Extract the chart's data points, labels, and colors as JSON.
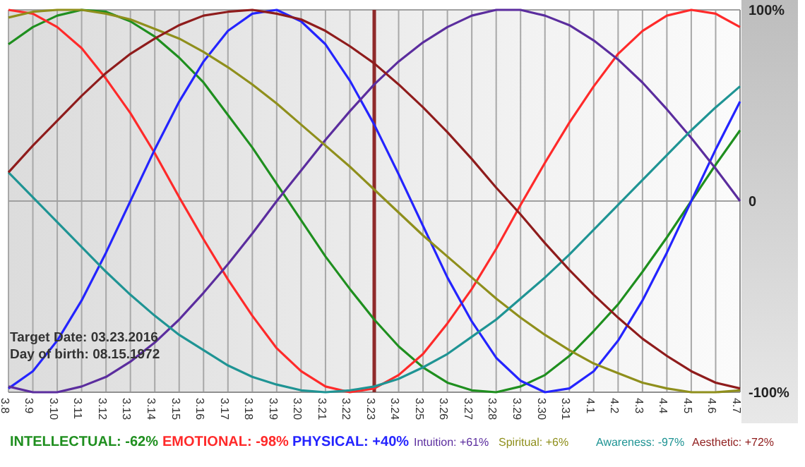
{
  "chart_data": {
    "type": "line",
    "categories": [
      "3.8",
      "3.9",
      "3.10",
      "3.11",
      "3.12",
      "3.13",
      "3.14",
      "3.15",
      "3.16",
      "3.17",
      "3.18",
      "3.19",
      "3.20",
      "3.21",
      "3.22",
      "3.23",
      "3.24",
      "3.25",
      "3.26",
      "3.27",
      "3.28",
      "3.29",
      "3.30",
      "3.31",
      "4.1",
      "4.2",
      "4.3",
      "4.4",
      "4.5",
      "4.6",
      "4.7"
    ],
    "series": [
      {
        "name": "INTELLECTUAL: -62%",
        "color": "#1f8f1f",
        "values": [
          82,
          91,
          97,
          100,
          99,
          94,
          86,
          75,
          62,
          45,
          28,
          9,
          -10,
          -29,
          -46,
          -62,
          -76,
          -87,
          -95,
          -99,
          -100,
          -97,
          -91,
          -81,
          -68,
          -54,
          -37,
          -19,
          0,
          19,
          37
        ]
      },
      {
        "name": "EMOTIONAL: -98%",
        "color": "#ff2a2a",
        "values": [
          100,
          98,
          91,
          80,
          64,
          46,
          25,
          2,
          -20,
          -41,
          -60,
          -77,
          -89,
          -97,
          -100,
          -98,
          -91,
          -80,
          -64,
          -46,
          -25,
          -2,
          20,
          41,
          60,
          77,
          89,
          97,
          100,
          98,
          91
        ]
      },
      {
        "name": "PHYSICAL: +40%",
        "color": "#2424ff",
        "values": [
          -98,
          -89,
          -73,
          -52,
          -27,
          0,
          27,
          52,
          73,
          89,
          98,
          100,
          94,
          82,
          63,
          40,
          14,
          -13,
          -40,
          -63,
          -82,
          -94,
          -100,
          -98,
          -89,
          -73,
          -52,
          -27,
          0,
          27,
          52
        ]
      },
      {
        "name": "Intuition: +61%",
        "color": "#5b2d9e",
        "values": [
          -97,
          -100,
          -100,
          -97,
          -92,
          -84,
          -74,
          -62,
          -48,
          -33,
          -17,
          0,
          16,
          32,
          47,
          61,
          73,
          83,
          91,
          97,
          100,
          100,
          97,
          92,
          84,
          74,
          62,
          48,
          33,
          17,
          0
        ]
      },
      {
        "name": "Spiritual: +6%",
        "color": "#8f8f1c",
        "values": [
          96,
          99,
          100,
          100,
          98,
          95,
          90,
          85,
          78,
          70,
          61,
          51,
          40,
          29,
          18,
          6,
          -6,
          -18,
          -29,
          -40,
          -51,
          -61,
          -70,
          -78,
          -85,
          -90,
          -95,
          -98,
          -100,
          -100,
          -99
        ]
      },
      {
        "name": "Awareness: -97%",
        "color": "#1f9494",
        "values": [
          15,
          2,
          -11,
          -24,
          -37,
          -49,
          -60,
          -70,
          -78,
          -86,
          -92,
          -96,
          -99,
          -100,
          -99,
          -97,
          -93,
          -87,
          -80,
          -71,
          -62,
          -51,
          -40,
          -28,
          -15,
          -2,
          11,
          24,
          37,
          49,
          60
        ]
      },
      {
        "name": "Aesthetic: +72%",
        "color": "#8f1c1c",
        "values": [
          15,
          29,
          42,
          55,
          67,
          77,
          85,
          92,
          97,
          99,
          100,
          98,
          95,
          89,
          81,
          72,
          61,
          49,
          36,
          22,
          7,
          -7,
          -22,
          -36,
          -49,
          -61,
          -72,
          -81,
          -89,
          -95,
          -98
        ]
      }
    ],
    "ylim": [
      -100,
      100
    ],
    "yticks": [
      {
        "value": 100,
        "label": "100%"
      },
      0,
      {
        "value": -100,
        "label": "-100%"
      }
    ],
    "grid": true,
    "legend": "bottom",
    "ref_lines": [
      {
        "axis": "x",
        "value": "3.23",
        "color": "#8f2a2a"
      }
    ],
    "annotations": [
      "Target Date: 03.23.2016",
      "Day of birth: 08.15.1972"
    ]
  }
}
